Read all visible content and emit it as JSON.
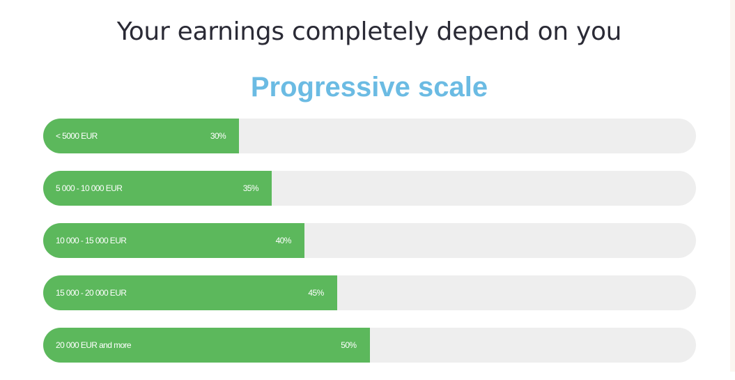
{
  "headline": "Your earnings completely depend on you",
  "colors": {
    "headline": "#2a2a35",
    "subhead": "#6bbbe3",
    "bar_fill": "#5cb85c",
    "bar_track": "#eeeeee"
  },
  "chart_data": {
    "type": "bar",
    "orientation": "horizontal",
    "title": "Progressive scale",
    "xlim": [
      0,
      100
    ],
    "categories": [
      "< 5000 EUR",
      "5 000 - 10 000 EUR",
      "10 000 - 15 000 EUR",
      "15 000 - 20 000 EUR",
      "20 000 EUR and more"
    ],
    "values": [
      30,
      35,
      40,
      45,
      50
    ],
    "value_labels": [
      "30%",
      "35%",
      "40%",
      "45%",
      "50%"
    ]
  }
}
